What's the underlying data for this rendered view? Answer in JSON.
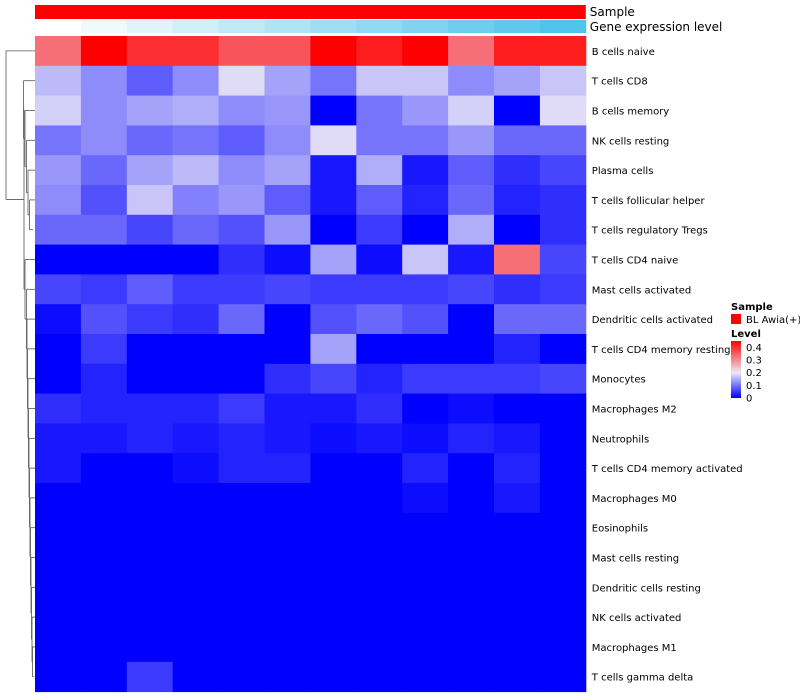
{
  "chart_data": {
    "type": "heatmap",
    "title": "",
    "top_annotations": [
      {
        "name": "Sample",
        "kind": "categorical",
        "color": "#ff0000",
        "value": "BL Awia(+)"
      },
      {
        "name": "Gene expression level",
        "kind": "gradient",
        "colors": [
          "#ffffff",
          "#4fc3ea"
        ]
      }
    ],
    "rows": [
      "B cells naive",
      "T cells CD8",
      "B cells memory",
      "NK cells resting",
      "Plasma cells",
      "T cells follicular helper",
      "T cells regulatory  Tregs",
      "T cells CD4 naive",
      "Mast cells activated",
      "Dendritic cells activated",
      "T cells CD4 memory resting",
      "Monocytes",
      "Macrophages M2",
      "Neutrophils",
      "T cells CD4 memory activated",
      "Macrophages M0",
      "Eosinophils",
      "Mast cells resting",
      "Dendritic cells resting",
      "NK cells activated",
      "Macrophages M1",
      "T cells gamma delta"
    ],
    "n_columns": 12,
    "values": [
      [
        0.33,
        0.45,
        0.4,
        0.4,
        0.36,
        0.36,
        0.45,
        0.42,
        0.45,
        0.33,
        0.42,
        0.42
      ],
      [
        0.16,
        0.12,
        0.08,
        0.12,
        0.19,
        0.14,
        0.1,
        0.17,
        0.17,
        0.12,
        0.14,
        0.17
      ],
      [
        0.18,
        0.12,
        0.14,
        0.15,
        0.12,
        0.13,
        0.0,
        0.1,
        0.13,
        0.18,
        0.0,
        0.19
      ],
      [
        0.1,
        0.12,
        0.09,
        0.1,
        0.08,
        0.12,
        0.19,
        0.1,
        0.1,
        0.13,
        0.09,
        0.09
      ],
      [
        0.13,
        0.09,
        0.14,
        0.16,
        0.12,
        0.14,
        0.02,
        0.15,
        0.02,
        0.08,
        0.04,
        0.06
      ],
      [
        0.12,
        0.07,
        0.17,
        0.11,
        0.13,
        0.08,
        0.02,
        0.08,
        0.03,
        0.09,
        0.03,
        0.04
      ],
      [
        0.09,
        0.09,
        0.06,
        0.09,
        0.07,
        0.13,
        0.0,
        0.05,
        0.0,
        0.15,
        0.0,
        0.04
      ],
      [
        0.0,
        0.0,
        0.0,
        0.0,
        0.04,
        0.01,
        0.14,
        0.01,
        0.17,
        0.02,
        0.33,
        0.06
      ],
      [
        0.06,
        0.05,
        0.08,
        0.05,
        0.05,
        0.06,
        0.05,
        0.05,
        0.05,
        0.06,
        0.04,
        0.05
      ],
      [
        0.01,
        0.07,
        0.05,
        0.04,
        0.09,
        0.0,
        0.07,
        0.09,
        0.07,
        0.0,
        0.09,
        0.09
      ],
      [
        0.0,
        0.05,
        0.0,
        0.0,
        0.0,
        0.0,
        0.14,
        0.0,
        0.0,
        0.0,
        0.03,
        0.0
      ],
      [
        0.0,
        0.03,
        0.0,
        0.0,
        0.0,
        0.04,
        0.06,
        0.03,
        0.05,
        0.05,
        0.05,
        0.06
      ],
      [
        0.04,
        0.03,
        0.03,
        0.03,
        0.05,
        0.02,
        0.02,
        0.04,
        0.0,
        0.01,
        0.0,
        0.0
      ],
      [
        0.02,
        0.02,
        0.03,
        0.02,
        0.03,
        0.02,
        0.01,
        0.02,
        0.01,
        0.03,
        0.02,
        0.0
      ],
      [
        0.02,
        0.0,
        0.0,
        0.01,
        0.03,
        0.03,
        0.0,
        0.0,
        0.03,
        0.0,
        0.03,
        0.0
      ],
      [
        0.0,
        0.0,
        0.0,
        0.0,
        0.0,
        0.0,
        0.0,
        0.0,
        0.01,
        0.0,
        0.02,
        0.0
      ],
      [
        0.0,
        0.0,
        0.0,
        0.0,
        0.0,
        0.0,
        0.0,
        0.0,
        0.0,
        0.0,
        0.0,
        0.0
      ],
      [
        0.0,
        0.0,
        0.0,
        0.0,
        0.0,
        0.0,
        0.0,
        0.0,
        0.0,
        0.0,
        0.0,
        0.0
      ],
      [
        0.0,
        0.0,
        0.0,
        0.0,
        0.0,
        0.0,
        0.0,
        0.0,
        0.0,
        0.0,
        0.0,
        0.0
      ],
      [
        0.0,
        0.0,
        0.0,
        0.0,
        0.0,
        0.0,
        0.0,
        0.0,
        0.0,
        0.0,
        0.0,
        0.0
      ],
      [
        0.0,
        0.0,
        0.0,
        0.0,
        0.0,
        0.0,
        0.0,
        0.0,
        0.0,
        0.0,
        0.0,
        0.0
      ],
      [
        0.0,
        0.0,
        0.05,
        0.0,
        0.0,
        0.0,
        0.0,
        0.0,
        0.0,
        0.0,
        0.0,
        0.0
      ]
    ],
    "color_scale": {
      "min": 0,
      "max": 0.45,
      "stops": [
        {
          "value": 0,
          "color": "#0000ff"
        },
        {
          "value": 0.2,
          "color": "#ece8f7"
        },
        {
          "value": 0.45,
          "color": "#ff0000"
        }
      ]
    },
    "legend": {
      "sample_title": "Sample",
      "sample_entry": "BL Awia(+)",
      "level_title": "Level",
      "level_ticks": [
        0,
        0.1,
        0.2,
        0.3,
        0.4
      ]
    },
    "row_dendrogram": true
  }
}
